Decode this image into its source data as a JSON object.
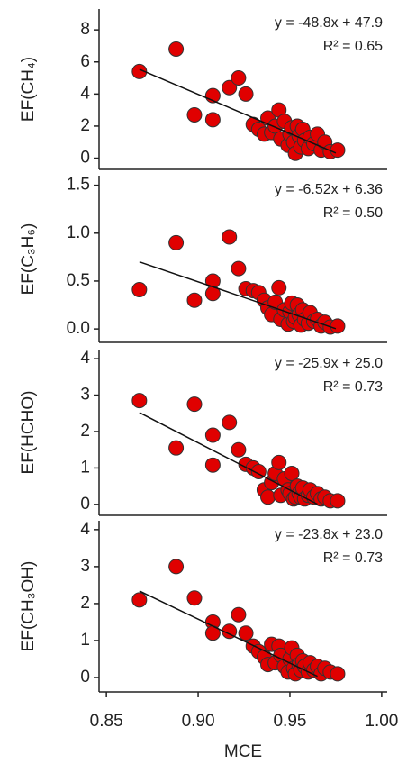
{
  "chart_data": [
    {
      "type": "scatter",
      "ylabel": "EF(CH₄)",
      "annotation": [
        "y = -48.8x + 47.9",
        "R² = 0.65"
      ],
      "color": "#e00000",
      "xlim": [
        0.846,
        1.003
      ],
      "ylim": [
        -0.7,
        9.3
      ],
      "yticks": [
        0,
        2,
        4,
        6,
        8
      ],
      "x": [
        0.868,
        0.888,
        0.898,
        0.908,
        0.908,
        0.917,
        0.922,
        0.926,
        0.93,
        0.933,
        0.936,
        0.938,
        0.94,
        0.942,
        0.944,
        0.945,
        0.947,
        0.949,
        0.95,
        0.951,
        0.952,
        0.953,
        0.954,
        0.955,
        0.956,
        0.957,
        0.958,
        0.96,
        0.961,
        0.963,
        0.965,
        0.967,
        0.969,
        0.972,
        0.976
      ],
      "values": [
        5.4,
        6.8,
        2.7,
        3.9,
        2.4,
        4.4,
        5.0,
        4.0,
        2.1,
        1.8,
        1.5,
        2.5,
        1.6,
        2.0,
        3.0,
        1.2,
        2.3,
        0.8,
        1.5,
        1.9,
        1.0,
        0.3,
        2.0,
        1.4,
        0.7,
        1.8,
        1.1,
        0.6,
        1.3,
        0.9,
        1.5,
        0.5,
        1.0,
        0.4,
        0.5
      ],
      "fit": {
        "x": [
          0.868,
          0.975
        ],
        "values": [
          5.54,
          0.32
        ]
      }
    },
    {
      "type": "scatter",
      "ylabel": "EF(C₃H₆)",
      "annotation": [
        "y = -6.52x + 6.36",
        "R² = 0.50"
      ],
      "color": "#e00000",
      "xlim": [
        0.846,
        1.003
      ],
      "ylim": [
        -0.14,
        1.6
      ],
      "yticks": [
        {
          "value": 0,
          "label": "0.0"
        },
        0.5,
        {
          "value": 1,
          "label": "1.0"
        },
        1.5
      ],
      "x": [
        0.868,
        0.888,
        0.898,
        0.908,
        0.908,
        0.917,
        0.922,
        0.926,
        0.93,
        0.933,
        0.936,
        0.938,
        0.94,
        0.942,
        0.944,
        0.945,
        0.947,
        0.949,
        0.95,
        0.951,
        0.952,
        0.953,
        0.954,
        0.955,
        0.956,
        0.957,
        0.958,
        0.96,
        0.961,
        0.963,
        0.965,
        0.967,
        0.969,
        0.972,
        0.976
      ],
      "values": [
        0.41,
        0.9,
        0.3,
        0.5,
        0.37,
        0.96,
        0.63,
        0.42,
        0.4,
        0.38,
        0.3,
        0.22,
        0.15,
        0.28,
        0.43,
        0.1,
        0.2,
        0.05,
        0.18,
        0.27,
        0.08,
        0.12,
        0.25,
        0.15,
        0.04,
        0.2,
        0.1,
        0.06,
        0.17,
        0.08,
        0.1,
        0.03,
        0.07,
        0.02,
        0.03
      ],
      "fit": {
        "x": [
          0.868,
          0.975
        ],
        "values": [
          0.7,
          0.003
        ]
      }
    },
    {
      "type": "scatter",
      "ylabel": "EF(HCHO)",
      "annotation": [
        "y = -25.9x + 25.0",
        "R² = 0.73"
      ],
      "color": "#e00000",
      "xlim": [
        0.846,
        1.003
      ],
      "ylim": [
        -0.3,
        4.25
      ],
      "yticks": [
        0,
        1,
        2,
        3,
        4
      ],
      "x": [
        0.868,
        0.888,
        0.898,
        0.908,
        0.908,
        0.917,
        0.922,
        0.926,
        0.93,
        0.933,
        0.936,
        0.938,
        0.94,
        0.942,
        0.944,
        0.945,
        0.947,
        0.949,
        0.95,
        0.951,
        0.952,
        0.953,
        0.954,
        0.955,
        0.956,
        0.957,
        0.958,
        0.96,
        0.961,
        0.963,
        0.965,
        0.967,
        0.969,
        0.972,
        0.976
      ],
      "values": [
        2.85,
        1.55,
        2.75,
        1.9,
        1.08,
        2.25,
        1.5,
        1.1,
        1.0,
        0.9,
        0.4,
        0.2,
        0.6,
        0.85,
        1.15,
        0.25,
        0.7,
        0.4,
        0.3,
        0.85,
        0.15,
        0.2,
        0.5,
        0.3,
        0.2,
        0.45,
        0.15,
        0.25,
        0.4,
        0.2,
        0.3,
        0.15,
        0.2,
        0.1,
        0.1
      ],
      "fit": {
        "x": [
          0.868,
          0.965
        ],
        "values": [
          2.52,
          0.006
        ]
      }
    },
    {
      "type": "scatter",
      "ylabel": "EF(CH₃OH)",
      "annotation": [
        "y = -23.8x + 23.0",
        "R² = 0.73"
      ],
      "color": "#e00000",
      "xlabel": "MCE",
      "xlim": [
        0.846,
        1.003
      ],
      "xticks": [
        0.85,
        {
          "value": 0.9,
          "label": "0.90"
        },
        0.95,
        {
          "value": 1,
          "label": "1.00"
        }
      ],
      "ylim": [
        -0.39,
        4.24
      ],
      "yticks": [
        0,
        1,
        2,
        3,
        4
      ],
      "x": [
        0.868,
        0.888,
        0.898,
        0.908,
        0.908,
        0.917,
        0.922,
        0.926,
        0.93,
        0.933,
        0.936,
        0.938,
        0.94,
        0.942,
        0.944,
        0.945,
        0.947,
        0.949,
        0.95,
        0.951,
        0.952,
        0.953,
        0.954,
        0.955,
        0.956,
        0.957,
        0.958,
        0.96,
        0.961,
        0.963,
        0.965,
        0.967,
        0.969,
        0.972,
        0.976
      ],
      "values": [
        2.1,
        3.0,
        2.15,
        1.5,
        1.2,
        1.25,
        1.7,
        1.2,
        0.85,
        0.7,
        0.55,
        0.35,
        0.9,
        0.4,
        0.85,
        0.6,
        0.3,
        0.15,
        0.5,
        0.8,
        0.25,
        0.1,
        0.6,
        0.35,
        0.2,
        0.45,
        0.3,
        0.15,
        0.4,
        0.2,
        0.3,
        0.1,
        0.25,
        0.15,
        0.1
      ],
      "fit": {
        "x": [
          0.868,
          0.965
        ],
        "values": [
          2.34,
          0.033
        ]
      }
    }
  ]
}
